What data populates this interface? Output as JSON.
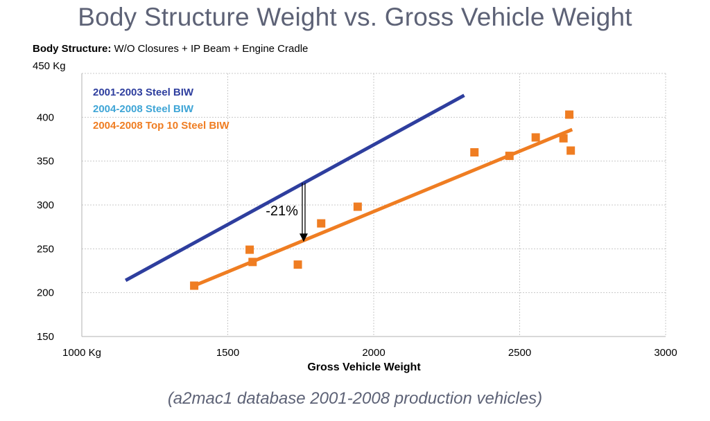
{
  "page": {
    "title": "Body Structure Weight vs. Gross Vehicle Weight",
    "subtitle_bold": "Body Structure:",
    "subtitle_rest": " W/O Closures + IP Beam + Engine Cradle",
    "y_top_label": "450 Kg",
    "footer": "(a2mac1 database 2001-2008 production vehicles)"
  },
  "chart_data": {
    "type": "scatter",
    "title": "Body Structure Weight vs. Gross Vehicle Weight",
    "xlabel": "Gross Vehicle Weight",
    "ylabel": "",
    "xlim": [
      1000,
      3000
    ],
    "ylim": [
      150,
      450
    ],
    "x_ticks": [
      {
        "value": 1000,
        "label": "1000 Kg"
      },
      {
        "value": 1500,
        "label": "1500"
      },
      {
        "value": 2000,
        "label": "2000"
      },
      {
        "value": 2500,
        "label": "2500"
      },
      {
        "value": 3000,
        "label": "3000"
      }
    ],
    "y_ticks": [
      {
        "value": 150,
        "label": "150"
      },
      {
        "value": 200,
        "label": "200"
      },
      {
        "value": 250,
        "label": "250"
      },
      {
        "value": 300,
        "label": "300"
      },
      {
        "value": 350,
        "label": "350"
      },
      {
        "value": 400,
        "label": "400"
      }
    ],
    "grid": true,
    "legend": {
      "placement": "top-left",
      "entries": [
        {
          "label": "2001-2003 Steel BIW",
          "color": "#2e3e9e"
        },
        {
          "label": "2004-2008 Steel BIW",
          "color": "#3fa5d6"
        },
        {
          "label": "2004-2008 Top 10 Steel BIW",
          "color": "#ef7d22"
        }
      ]
    },
    "series": [
      {
        "name": "2001-2003 Steel BIW",
        "kind": "line",
        "color": "#2e3e9e",
        "points": [
          [
            1150,
            214
          ],
          [
            2310,
            425
          ]
        ]
      },
      {
        "name": "2004-2008 Top 10 Steel BIW",
        "kind": "line",
        "color": "#ef7d22",
        "points": [
          [
            1385,
            208
          ],
          [
            2680,
            386
          ]
        ]
      },
      {
        "name": "2004-2008 Top 10 Steel BIW",
        "kind": "scatter",
        "color": "#ef7d22",
        "points": [
          [
            1385,
            208
          ],
          [
            1575,
            249
          ],
          [
            1585,
            235
          ],
          [
            1740,
            232
          ],
          [
            1820,
            279
          ],
          [
            1945,
            298
          ],
          [
            2345,
            360
          ],
          [
            2465,
            356
          ],
          [
            2555,
            377
          ],
          [
            2650,
            376
          ],
          [
            2670,
            403
          ],
          [
            2675,
            362
          ]
        ]
      }
    ],
    "annotations": [
      {
        "text": "-21%",
        "x": 1760,
        "y_from": 325,
        "y_to": 258
      }
    ]
  }
}
